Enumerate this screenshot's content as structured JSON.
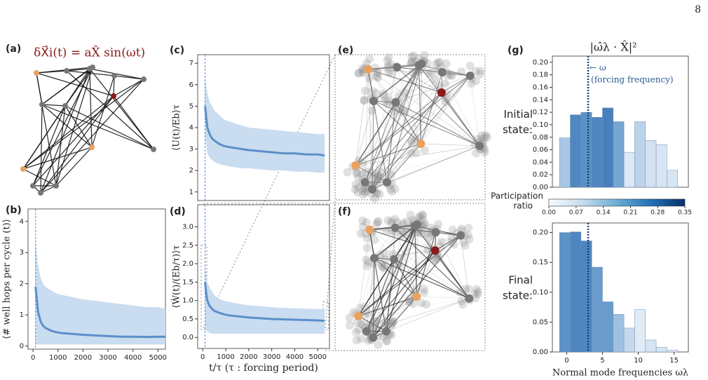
{
  "page_number": "8",
  "diagrams": [
    {
      "panel": "(a)",
      "equation": "δX⃗i(t) = aX̂ sin(ωt)"
    },
    {
      "panel": "(e)"
    },
    {
      "panel": "(f)"
    }
  ],
  "colorbar": {
    "label": [
      "Participation",
      "ratio"
    ],
    "clim": [
      0,
      0.35
    ],
    "colors": [
      "#f7fbff",
      "#c6dbef",
      "#6baed6",
      "#2171b5",
      "#08306b"
    ],
    "ticks": [
      {
        "value": 0,
        "label": "0.00"
      },
      {
        "value": 0.07,
        "label": "0.07"
      },
      {
        "value": 0.14,
        "label": "0.14"
      },
      {
        "value": 0.21,
        "label": "0.21"
      },
      {
        "value": 0.28,
        "label": "0.28"
      },
      {
        "value": 0.35,
        "label": "0.35"
      }
    ]
  },
  "chart_data": [
    {
      "type": "line",
      "panel": "(b)",
      "ylabel": "⟨# well hops per cycle (t)⟩",
      "color": "#5b8fc9",
      "band_color": "#c9dcf0",
      "vline_x": 100,
      "x": [
        100,
        150,
        200,
        300,
        400,
        500,
        700,
        900,
        1100,
        1400,
        1700,
        2000,
        2500,
        3000,
        3500,
        4000,
        4500,
        5000,
        5300
      ],
      "values": [
        1.9,
        1.5,
        1.1,
        0.8,
        0.65,
        0.58,
        0.5,
        0.45,
        0.42,
        0.4,
        0.38,
        0.36,
        0.34,
        0.32,
        0.3,
        0.3,
        0.29,
        0.3,
        0.3
      ],
      "upper": [
        3.5,
        3.0,
        2.6,
        2.2,
        2.0,
        1.9,
        1.8,
        1.7,
        1.65,
        1.6,
        1.55,
        1.5,
        1.45,
        1.4,
        1.35,
        1.3,
        1.25,
        1.25,
        1.2
      ],
      "lower": [
        0.05,
        0.05,
        0.05,
        0.05,
        0.05,
        0.05,
        0.05,
        0.05,
        0.05,
        0.05,
        0.05,
        0.05,
        0.05,
        0.05,
        0.05,
        0.05,
        0.05,
        0.05,
        0.05
      ],
      "xlim": [
        -200,
        5300
      ],
      "xticks": [
        0,
        1000,
        2000,
        3000,
        4000,
        5000
      ],
      "ylim": [
        -0.1,
        4.4
      ],
      "yticks": [
        0,
        1,
        2,
        3,
        4
      ]
    },
    {
      "type": "line",
      "panel": "(c)",
      "ylabel": "⟨U(t)/Eb⟩τ",
      "color": "#5b8fc9",
      "band_color": "#c9dcf0",
      "vline_x": 100,
      "x": [
        100,
        150,
        200,
        300,
        400,
        500,
        700,
        900,
        1100,
        1400,
        1700,
        2000,
        2500,
        3000,
        3500,
        4000,
        4500,
        5000,
        5300
      ],
      "values": [
        5.0,
        4.5,
        4.0,
        3.7,
        3.5,
        3.4,
        3.25,
        3.15,
        3.1,
        3.05,
        3.0,
        2.95,
        2.9,
        2.85,
        2.8,
        2.8,
        2.75,
        2.75,
        2.7
      ],
      "upper": [
        6.3,
        6.0,
        5.6,
        5.2,
        5.0,
        4.8,
        4.6,
        4.4,
        4.3,
        4.2,
        4.1,
        4.0,
        3.95,
        3.9,
        3.85,
        3.8,
        3.75,
        3.7,
        3.7
      ],
      "lower": [
        3.7,
        3.2,
        2.8,
        2.6,
        2.5,
        2.4,
        2.3,
        2.25,
        2.2,
        2.15,
        2.1,
        2.1,
        2.05,
        2.0,
        2.0,
        1.95,
        1.95,
        1.9,
        1.9
      ],
      "xlim": [
        -220,
        5510
      ],
      "ylim": [
        0.6,
        7.4
      ],
      "yticks": [
        1,
        2,
        3,
        4,
        5,
        6,
        7
      ]
    },
    {
      "type": "line",
      "panel": "(d)",
      "ylabel": "⟨Ẇ(t)/(Eb/τ)⟩τ",
      "xlabel": "t/τ    (τ : forcing period)",
      "color": "#5b8fc9",
      "band_color": "#c9dcf0",
      "vline_x": 100,
      "x": [
        100,
        150,
        200,
        300,
        400,
        500,
        700,
        900,
        1100,
        1400,
        1700,
        2000,
        2500,
        3000,
        3500,
        4000,
        4500,
        5000,
        5300
      ],
      "values": [
        1.5,
        1.2,
        1.0,
        0.85,
        0.78,
        0.72,
        0.67,
        0.63,
        0.6,
        0.58,
        0.56,
        0.54,
        0.52,
        0.5,
        0.49,
        0.48,
        0.47,
        0.46,
        0.45
      ],
      "upper": [
        2.0,
        1.7,
        1.5,
        1.35,
        1.25,
        1.15,
        1.05,
        1.0,
        0.97,
        0.93,
        0.9,
        0.87,
        0.85,
        0.82,
        0.8,
        0.79,
        0.78,
        0.77,
        0.76
      ],
      "lower": [
        0.3,
        0.2,
        0.15,
        0.12,
        0.1,
        0.1,
        0.1,
        0.1,
        0.1,
        0.1,
        0.1,
        0.1,
        0.1,
        0.1,
        0.1,
        0.1,
        0.1,
        0.1,
        0.1
      ],
      "xlim": [
        -220,
        5510
      ],
      "xticks": [
        0,
        1000,
        2000,
        3000,
        4000,
        5000
      ],
      "ylim": [
        -0.3,
        3.6
      ],
      "yticks": [
        {
          "value": 0,
          "label": "0.0"
        },
        {
          "value": 0.5,
          "label": "0.5"
        },
        {
          "value": 1,
          "label": "1.0"
        },
        {
          "value": 1.5,
          "label": "1.5"
        },
        {
          "value": 2,
          "label": "2.0"
        },
        {
          "value": 2.5,
          "label": "2.5"
        },
        {
          "value": 3,
          "label": "3.0"
        }
      ]
    },
    {
      "type": "histogram",
      "panel": "(g)",
      "title": "|ω̂λ · X̂|²",
      "row_label": [
        "Initial",
        "state:"
      ],
      "forcing_frequency": 3,
      "annotation": [
        "← ω",
        "(forcing frequency)"
      ],
      "bins": [
        -1,
        0.5,
        2,
        3.5,
        5,
        6.5,
        8,
        9.5,
        11,
        12.5,
        14,
        15.5
      ],
      "values": [
        0.079,
        0.116,
        0.12,
        0.112,
        0.127,
        0.105,
        0.056,
        0.105,
        0.075,
        0.068,
        0.027
      ],
      "colors": [
        "#a9c7e4",
        "#4f87c0",
        "#5b92c6",
        "#4f87c0",
        "#4880bd",
        "#77a5d2",
        "#dbe8f5",
        "#bcd4eb",
        "#d2e2f1",
        "#d8e6f3",
        "#d7e6f3"
      ],
      "xlim": [
        -2,
        17
      ],
      "ylim": [
        0,
        0.21
      ],
      "yticks": [
        {
          "value": 0,
          "label": "0.00"
        },
        {
          "value": 0.02,
          "label": "0.02"
        },
        {
          "value": 0.04,
          "label": "0.04"
        },
        {
          "value": 0.06,
          "label": "0.06"
        },
        {
          "value": 0.08,
          "label": "0.08"
        },
        {
          "value": 0.1,
          "label": "0.10"
        },
        {
          "value": 0.12,
          "label": "0.12"
        },
        {
          "value": 0.14,
          "label": "0.14"
        },
        {
          "value": 0.16,
          "label": "0.16"
        },
        {
          "value": 0.18,
          "label": "0.18"
        },
        {
          "value": 0.2,
          "label": "0.20"
        }
      ]
    },
    {
      "type": "histogram",
      "row_label": [
        "Final",
        "state:"
      ],
      "forcing_frequency": 3,
      "xlabel": "Normal mode frequencies ωλ",
      "bins": [
        -1,
        0.5,
        2,
        3.5,
        5,
        6.5,
        8,
        9.5,
        11,
        12.5,
        14,
        15.5
      ],
      "values": [
        0.2,
        0.201,
        0.186,
        0.142,
        0.084,
        0.063,
        0.04,
        0.071,
        0.02,
        0.008,
        0.003
      ],
      "colors": [
        "#5d93c7",
        "#4d86c0",
        "#4d86c0",
        "#6a9ccd",
        "#6a9ccd",
        "#9fc1e0",
        "#c4d9ee",
        "#e0ebf6",
        "#d5e4f2",
        "#d6e5f3",
        "#e4eef8"
      ],
      "xlim": [
        -2,
        17
      ],
      "xticks": [
        0,
        5,
        10,
        15
      ],
      "ylim": [
        0,
        0.216
      ],
      "yticks": [
        {
          "value": 0,
          "label": "0.00"
        },
        {
          "value": 0.05,
          "label": "0.05"
        },
        {
          "value": 0.1,
          "label": "0.10"
        },
        {
          "value": 0.15,
          "label": "0.15"
        },
        {
          "value": 0.2,
          "label": "0.20"
        }
      ]
    }
  ]
}
